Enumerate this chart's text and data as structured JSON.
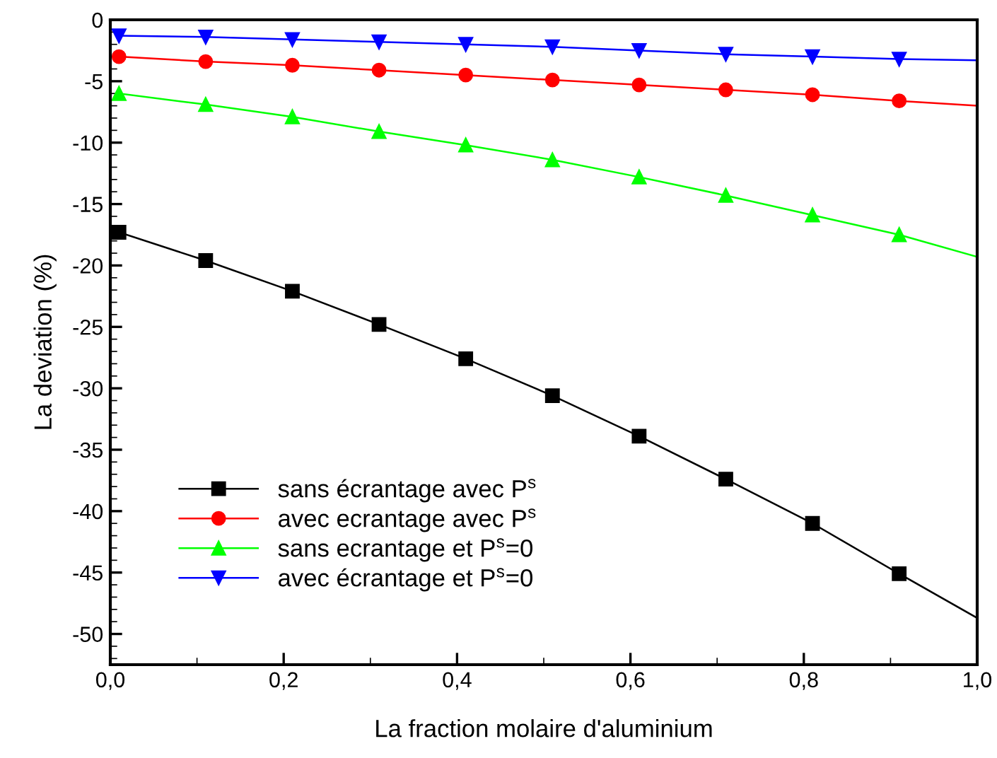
{
  "chart_data": {
    "type": "line",
    "xlabel": "La fraction molaire d'aluminium",
    "ylabel": "La deviation (%)",
    "x": [
      0.01,
      0.11,
      0.21,
      0.31,
      0.41,
      0.51,
      0.61,
      0.71,
      0.81,
      0.91,
      1.0
    ],
    "series": [
      {
        "name": "sans écrantage avec P$^{s}$",
        "color": "#000000",
        "marker": "square",
        "values": [
          -17.3,
          -19.6,
          -22.1,
          -24.8,
          -27.6,
          -30.6,
          -33.9,
          -37.4,
          -41.0,
          -45.1,
          -48.7
        ]
      },
      {
        "name": "avec ecrantage avec P$^{s}$",
        "color": "#ff0000",
        "marker": "circle",
        "values": [
          -3.0,
          -3.4,
          -3.7,
          -4.1,
          -4.5,
          -4.9,
          -5.3,
          -5.7,
          -6.1,
          -6.6,
          -7.0
        ]
      },
      {
        "name": "sans ecrantage et P$^{s}$=0",
        "color": "#00ff00",
        "marker": "triangle",
        "values": [
          -6.0,
          -6.9,
          -7.9,
          -9.1,
          -10.2,
          -11.4,
          -12.8,
          -14.3,
          -15.9,
          -17.5,
          -19.3
        ]
      },
      {
        "name": "avec écrantage et P$^{s}$=0",
        "color": "#0000ff",
        "marker": "triangle_down",
        "values": [
          -1.3,
          -1.4,
          -1.6,
          -1.8,
          -2.0,
          -2.2,
          -2.5,
          -2.8,
          -3.0,
          -3.2,
          -3.3
        ]
      }
    ],
    "xlim": [
      0.0,
      1.0
    ],
    "xticks": [
      {
        "value": 0.0,
        "label": "0,0"
      },
      {
        "value": 0.2,
        "label": "0,2"
      },
      {
        "value": 0.4,
        "label": "0,4"
      },
      {
        "value": 0.6,
        "label": "0,6"
      },
      {
        "value": 0.8,
        "label": "0,8"
      },
      {
        "value": 1.0,
        "label": "1,0"
      }
    ],
    "ylim": [
      -52.5,
      0
    ],
    "yticks": [
      -50,
      -45,
      -40,
      -35,
      -30,
      -25,
      -20,
      -15,
      -10,
      -5,
      0
    ],
    "legend": "bottom left",
    "grid": false
  }
}
